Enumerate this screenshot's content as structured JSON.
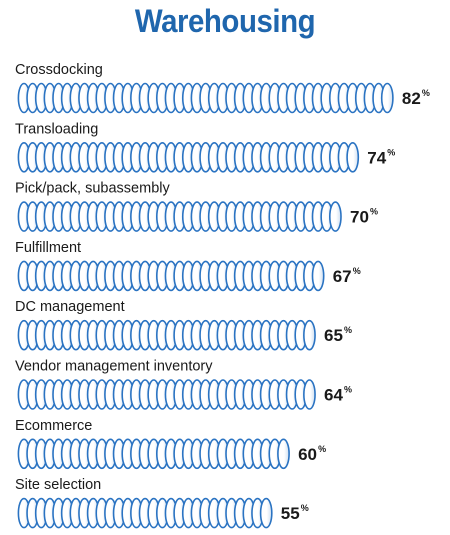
{
  "chart_data": {
    "type": "bar",
    "orientation": "horizontal",
    "title": "Warehousing",
    "categories": [
      "Crossdocking",
      "Transloading",
      "Pick/pack, subassembly",
      "Fulfillment",
      "DC management",
      "Vendor management inventory",
      "Ecommerce",
      "Site selection"
    ],
    "values": [
      82,
      74,
      70,
      67,
      65,
      64,
      60,
      55
    ],
    "value_labels": [
      "82",
      "74",
      "70",
      "67",
      "65",
      "64",
      "60",
      "55"
    ],
    "unit_label": "%",
    "xlim": [
      0,
      100
    ],
    "grid": false,
    "legend": "none",
    "colors": {
      "title": "#1f66ad",
      "ring_stroke": "#2a73c2",
      "ring_fill": "#ffffff",
      "ring_shade": "#d9e6f4",
      "text": "#1a1a1a"
    }
  }
}
